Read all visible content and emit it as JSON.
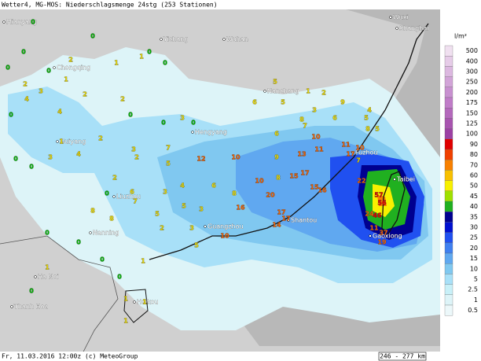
{
  "header": {
    "title": "Wetter4, MG-MOS: Niederschlagsmenge 24stg (253 Stationen)"
  },
  "footer": {
    "timestamp": "Fr, 11.03.2016 12:00z (c) MeteoGroup",
    "scale": "246 - 277 km"
  },
  "legend": {
    "unit": "l/m²",
    "levels": [
      {
        "value": 500,
        "color": "#f0e0f0"
      },
      {
        "value": 400,
        "color": "#e6cce8"
      },
      {
        "value": 300,
        "color": "#dcb8e0"
      },
      {
        "value": 250,
        "color": "#d2a4d8"
      },
      {
        "value": 200,
        "color": "#c890d0"
      },
      {
        "value": 175,
        "color": "#c07cc8"
      },
      {
        "value": 150,
        "color": "#b468bc"
      },
      {
        "value": 125,
        "color": "#a854b0"
      },
      {
        "value": 100,
        "color": "#9c40a4"
      },
      {
        "value": 90,
        "color": "#e00000"
      },
      {
        "value": 80,
        "color": "#f04000"
      },
      {
        "value": 70,
        "color": "#f88000"
      },
      {
        "value": 60,
        "color": "#f8c000"
      },
      {
        "value": 50,
        "color": "#f8f000"
      },
      {
        "value": 45,
        "color": "#a0e000"
      },
      {
        "value": 40,
        "color": "#20b020"
      },
      {
        "value": 35,
        "color": "#000090"
      },
      {
        "value": 30,
        "color": "#0010d0"
      },
      {
        "value": 25,
        "color": "#2050f0"
      },
      {
        "value": 20,
        "color": "#4080f0"
      },
      {
        "value": 15,
        "color": "#60a8f0"
      },
      {
        "value": 10,
        "color": "#80c8f0"
      },
      {
        "value": 5,
        "color": "#a8e0f8"
      },
      {
        "value": 2.5,
        "color": "#c8f0f8"
      },
      {
        "value": 1,
        "color": "#ddf4f8"
      },
      {
        "value": 0.5,
        "color": "#ecf8fa"
      }
    ]
  },
  "cities": [
    "Mianyang",
    "Yichang",
    "Wuhan",
    "Wuxi",
    "Shanghai",
    "Chongqing",
    "Nanchang",
    "Guiyang",
    "Hengyang",
    "Fuzhou",
    "Taibei",
    "Liuzhou",
    "Nanning",
    "Guangzhou",
    "Shantou",
    "Gaoxiong",
    "Ha Noi",
    "Haikou",
    "Thanh Hoa"
  ],
  "stations": [
    0,
    0,
    0,
    0,
    0,
    2,
    1,
    1,
    0,
    0,
    1,
    2,
    3,
    4,
    4,
    0,
    2,
    2,
    0,
    0,
    3,
    0,
    1,
    0,
    0,
    3,
    4,
    2,
    3,
    7,
    5,
    12,
    10,
    2,
    0,
    6,
    3,
    4,
    6,
    8,
    16,
    8,
    7,
    5,
    5,
    3,
    2,
    3,
    10,
    5,
    10,
    20,
    9,
    8,
    17,
    15,
    15,
    16,
    13,
    11,
    10,
    7,
    6,
    8,
    5,
    2,
    1,
    3,
    9,
    6,
    11,
    17,
    10,
    7,
    22,
    8,
    5,
    4,
    5,
    57,
    56,
    46,
    24,
    11,
    37,
    19,
    17,
    17,
    14,
    6,
    5,
    8,
    2,
    0,
    0,
    1,
    1,
    1,
    1,
    0,
    1,
    0,
    0
  ]
}
